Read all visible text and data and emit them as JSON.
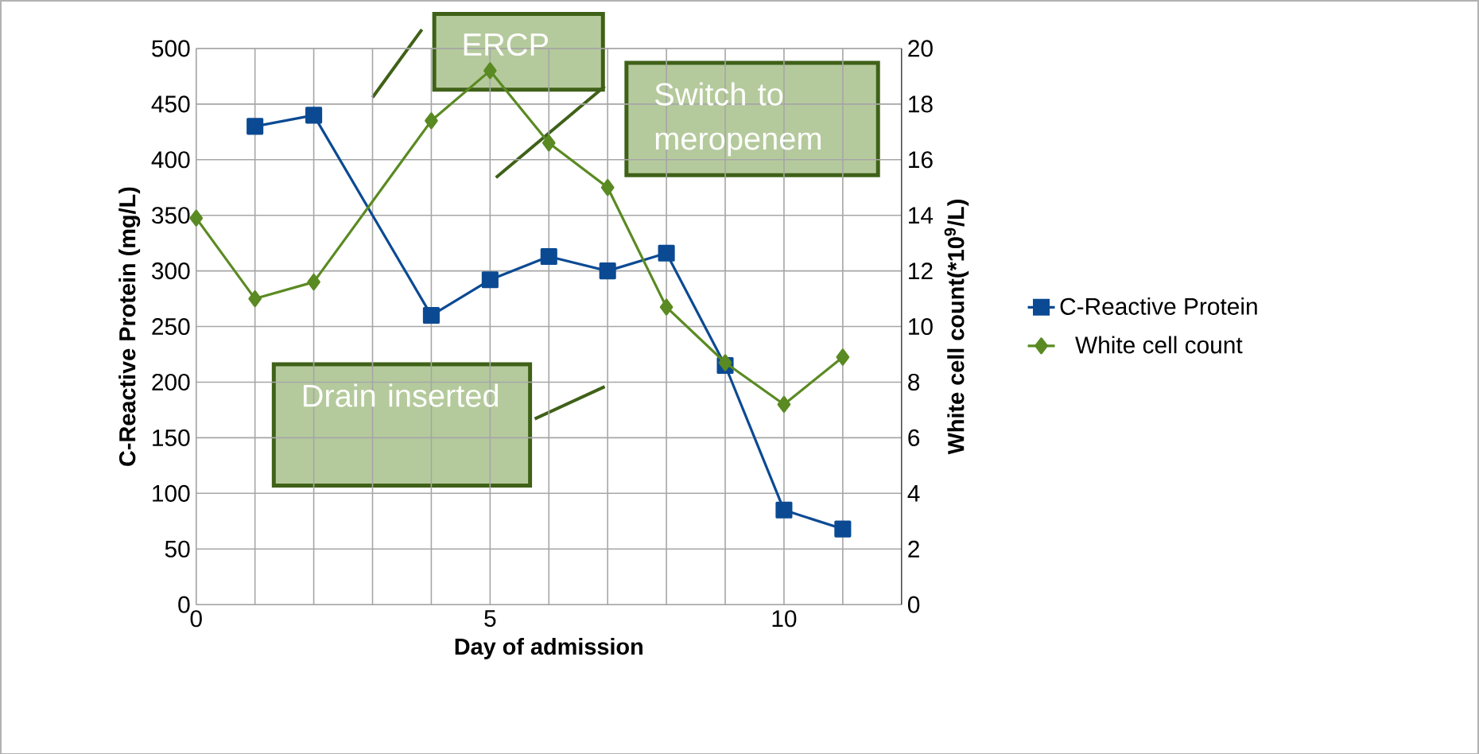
{
  "chart_data": {
    "type": "line",
    "xlabel": "Day of admission",
    "ylabel": "C-Reactive Protein (mg/L)",
    "y2label": "White cell count(*10$^{9}$/L)",
    "xlim": [
      0,
      12
    ],
    "xticks": [
      0,
      {
        "value": 1,
        "label": null
      },
      {
        "value": 2,
        "label": null
      },
      {
        "value": 3,
        "label": null
      },
      {
        "value": 4,
        "label": null
      },
      5,
      {
        "value": 6,
        "label": null
      },
      {
        "value": 7,
        "label": null
      },
      {
        "value": 8,
        "label": null
      },
      {
        "value": 9,
        "label": null
      },
      10,
      {
        "value": 11,
        "label": null
      },
      {
        "value": 12,
        "label": null
      }
    ],
    "ylim": [
      0,
      500
    ],
    "yticks": [
      0,
      50,
      100,
      150,
      200,
      250,
      300,
      350,
      400,
      450,
      500
    ],
    "y2lim": [
      0,
      20
    ],
    "y2ticks": [
      0,
      2,
      4,
      6,
      8,
      10,
      12,
      14,
      16,
      18,
      20
    ],
    "grid": true,
    "legend": "right",
    "line_style": "solid",
    "series": [
      {
        "name": "C-Reactive Protein",
        "color": "#0b4a93",
        "marker": "square",
        "x": [
          1,
          2,
          4,
          5,
          6,
          7,
          8,
          9,
          10,
          11
        ],
        "values": [
          430,
          440,
          260,
          292,
          313,
          300,
          316,
          215,
          85,
          68
        ]
      },
      {
        "name": "White cell count",
        "color": "#5a8a22",
        "marker": "diamond",
        "axis": "y2",
        "x": [
          0,
          1,
          2,
          4,
          5,
          6,
          7,
          8,
          9,
          10,
          11
        ],
        "values": [
          13.9,
          11.0,
          11.6,
          17.4,
          19.2,
          16.6,
          15.0,
          10.7,
          8.7,
          7.2,
          8.9
        ]
      }
    ],
    "annotations": [
      "ERCP",
      "Switch to meropenem",
      "Drain inserted"
    ]
  }
}
